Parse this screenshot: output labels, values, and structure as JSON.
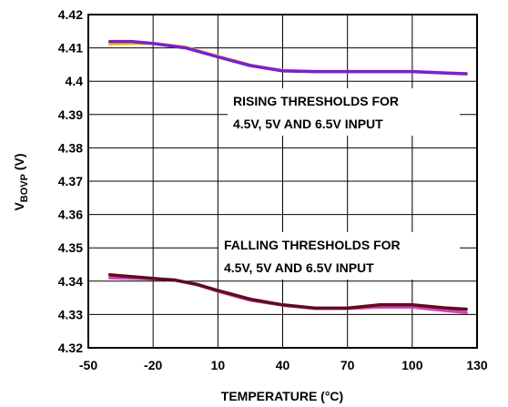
{
  "chart_data": {
    "type": "line",
    "xlabel": "TEMPERATURE (°C)",
    "ylabel_main": "V",
    "ylabel_sub": "BOVP",
    "ylabel_unit": " (V)",
    "xlim": [
      -50,
      130
    ],
    "ylim": [
      4.32,
      4.42
    ],
    "x_ticks": [
      -50,
      -20,
      10,
      40,
      70,
      100,
      130
    ],
    "x_tick_labels": [
      "-50",
      "-20",
      "10",
      "40",
      "70",
      "100",
      "130"
    ],
    "y_ticks": [
      4.32,
      4.33,
      4.34,
      4.35,
      4.36,
      4.37,
      4.38,
      4.39,
      4.4,
      4.41,
      4.42
    ],
    "y_tick_labels": [
      "4.32",
      "4.33",
      "4.34",
      "4.35",
      "4.36",
      "4.37",
      "4.38",
      "4.39",
      "4.4",
      "4.41",
      "4.42"
    ],
    "grid": true,
    "annotations": [
      {
        "lines": [
          "RISING THRESHOLDS FOR",
          "4.5V, 5V AND 6.5V INPUT"
        ]
      },
      {
        "lines": [
          "FALLING THRESHOLDS FOR",
          "4.5V, 5V AND 6.5V INPUT"
        ]
      }
    ],
    "series": [
      {
        "color": "#f2c200",
        "x": [
          -40,
          -30,
          -20,
          -5,
          10,
          25,
          40,
          55,
          70,
          85,
          100,
          115,
          125
        ],
        "y": [
          4.4112,
          4.4113,
          4.4114,
          4.4102,
          4.4075,
          4.4048,
          4.4032,
          4.4029,
          4.4029,
          4.4029,
          4.4029,
          4.4025,
          4.4023
        ]
      },
      {
        "color": "#7a1fd8",
        "x": [
          -40,
          -30,
          -20,
          -5,
          10,
          25,
          40,
          55,
          70,
          85,
          100,
          115,
          125
        ],
        "y": [
          4.4119,
          4.4119,
          4.4113,
          4.41,
          4.4073,
          4.4047,
          4.4031,
          4.4029,
          4.4029,
          4.4029,
          4.4029,
          4.4025,
          4.4022
        ]
      },
      {
        "color": "#e03cb8",
        "x": [
          -40,
          -25,
          -10,
          0,
          10,
          25,
          40,
          55,
          70,
          85,
          100,
          115,
          125
        ],
        "y": [
          4.341,
          4.3408,
          4.3404,
          4.339,
          4.337,
          4.3343,
          4.3328,
          4.3318,
          4.3318,
          4.3322,
          4.3322,
          4.3312,
          4.3306
        ]
      },
      {
        "color": "#5a0f1c",
        "x": [
          -40,
          -25,
          -10,
          0,
          10,
          25,
          40,
          55,
          70,
          85,
          100,
          115,
          125
        ],
        "y": [
          4.3419,
          4.3411,
          4.3403,
          4.3391,
          4.3372,
          4.3346,
          4.3329,
          4.3319,
          4.3319,
          4.3329,
          4.3329,
          4.332,
          4.3316
        ]
      }
    ]
  }
}
